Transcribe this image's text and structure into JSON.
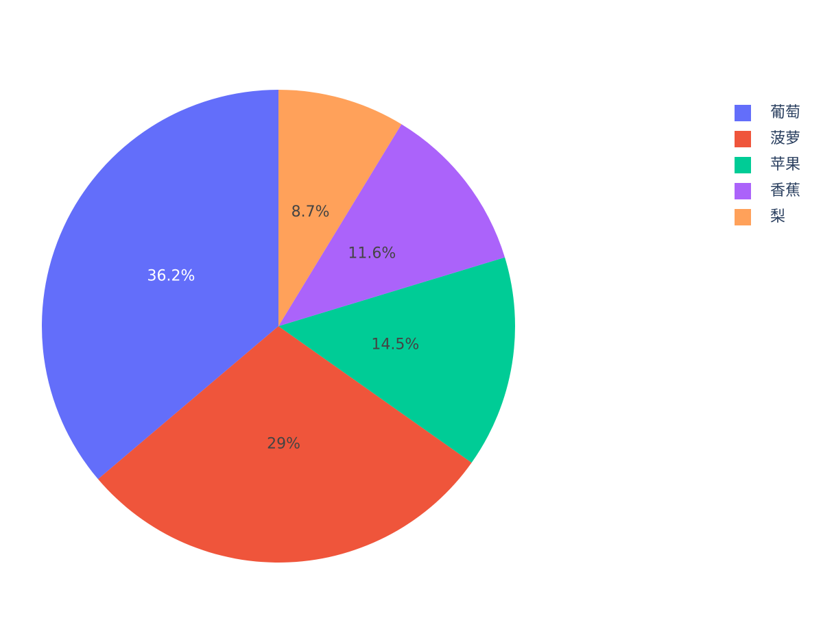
{
  "chart_data": {
    "type": "pie",
    "sort": false,
    "categories": [
      "葡萄",
      "菠萝",
      "苹果",
      "香蕉",
      "梨"
    ],
    "values": [
      36.2,
      29.0,
      14.5,
      11.6,
      8.7
    ],
    "labels": [
      "36.2%",
      "29%",
      "14.5%",
      "11.6%",
      "8.7%"
    ],
    "colors": [
      "#636efa",
      "#ef553b",
      "#00cc96",
      "#ab63fa",
      "#ffa15a"
    ],
    "label_colors": [
      "#ffffff",
      "#444444",
      "#444444",
      "#444444",
      "#444444"
    ],
    "direction": "counterclockwise",
    "start_angle": 90,
    "legend_position": "top-right"
  },
  "legend": {
    "items": [
      {
        "label": "葡萄",
        "color": "#636efa"
      },
      {
        "label": "菠萝",
        "color": "#ef553b"
      },
      {
        "label": "苹果",
        "color": "#00cc96"
      },
      {
        "label": "香蕉",
        "color": "#ab63fa"
      },
      {
        "label": "梨",
        "color": "#ffa15a"
      }
    ]
  }
}
